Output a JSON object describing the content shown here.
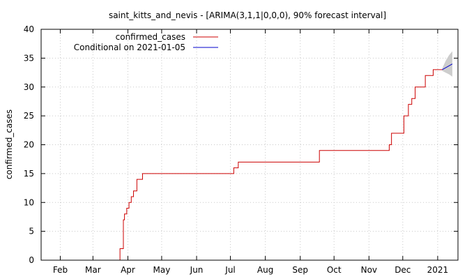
{
  "chart_data": {
    "type": "line",
    "title": "saint_kitts_and_nevis -  [ARIMA(3,1,1|0,0,0), 90% forecast interval]",
    "xlabel": "",
    "ylabel": "confirmed_cases",
    "ylim": [
      0,
      40
    ],
    "y_ticks": [
      0,
      5,
      10,
      15,
      20,
      25,
      30,
      35,
      40
    ],
    "xlim": [
      "2020-01-15",
      "2021-01-19"
    ],
    "x_ticks": [
      {
        "label": "Feb",
        "date": "2020-02-01"
      },
      {
        "label": "Mar",
        "date": "2020-03-01"
      },
      {
        "label": "Apr",
        "date": "2020-04-01"
      },
      {
        "label": "May",
        "date": "2020-05-01"
      },
      {
        "label": "Jun",
        "date": "2020-06-01"
      },
      {
        "label": "Jul",
        "date": "2020-07-01"
      },
      {
        "label": "Aug",
        "date": "2020-08-01"
      },
      {
        "label": "Sep",
        "date": "2020-09-01"
      },
      {
        "label": "Oct",
        "date": "2020-10-01"
      },
      {
        "label": "Nov",
        "date": "2020-11-01"
      },
      {
        "label": "Dec",
        "date": "2020-12-01"
      },
      {
        "label": "2021",
        "date": "2021-01-01"
      }
    ],
    "grid": true,
    "legend_position": "top-left",
    "series": [
      {
        "name": "confirmed_cases",
        "color": "#cc0000",
        "style": "step",
        "points": [
          [
            "2020-03-24",
            0
          ],
          [
            "2020-03-25",
            2
          ],
          [
            "2020-03-28",
            7
          ],
          [
            "2020-03-29",
            8
          ],
          [
            "2020-03-31",
            9
          ],
          [
            "2020-04-02",
            10
          ],
          [
            "2020-04-04",
            11
          ],
          [
            "2020-04-06",
            12
          ],
          [
            "2020-04-09",
            14
          ],
          [
            "2020-04-14",
            15
          ],
          [
            "2020-07-04",
            16
          ],
          [
            "2020-07-08",
            17
          ],
          [
            "2020-09-18",
            19
          ],
          [
            "2020-11-19",
            20
          ],
          [
            "2020-11-21",
            22
          ],
          [
            "2020-12-02",
            25
          ],
          [
            "2020-12-06",
            27
          ],
          [
            "2020-12-09",
            28
          ],
          [
            "2020-12-12",
            30
          ],
          [
            "2020-12-21",
            32
          ],
          [
            "2020-12-28",
            33
          ],
          [
            "2021-01-05",
            33
          ]
        ]
      },
      {
        "name": "Conditional on 2021-01-05",
        "color": "#0000cc",
        "style": "line",
        "points": [
          [
            "2021-01-05",
            33
          ],
          [
            "2021-01-14",
            34
          ]
        ],
        "interval_color": "#c8c8c8",
        "interval": {
          "dates": [
            "2021-01-05",
            "2021-01-08",
            "2021-01-11",
            "2021-01-14"
          ],
          "upper": [
            33.2,
            34.5,
            35.5,
            36.2
          ],
          "lower": [
            32.8,
            32.5,
            32.2,
            31.8
          ]
        }
      }
    ]
  }
}
